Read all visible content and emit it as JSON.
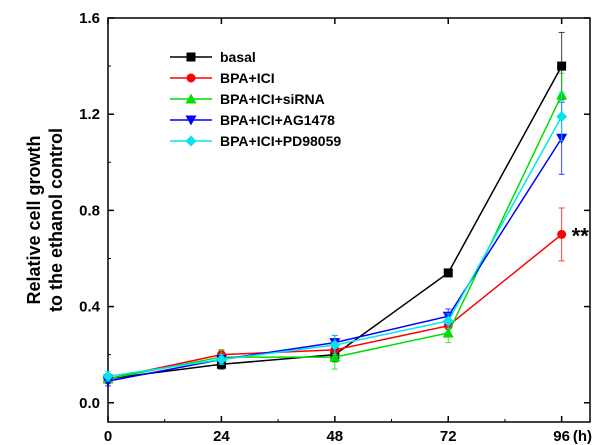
{
  "chart_data": {
    "type": "line",
    "title": "",
    "xlabel": "(h)",
    "ylabel_lines": [
      "Relative cell growth",
      "to the ethanol control"
    ],
    "x": [
      0,
      24,
      48,
      72,
      96
    ],
    "x_ticks": [
      "0",
      "24",
      "48",
      "72",
      "96"
    ],
    "y_ticks": [
      "0.0",
      "0.4",
      "0.8",
      "1.2",
      "1.6"
    ],
    "xlim": [
      0,
      102
    ],
    "ylim": [
      -0.08,
      1.6
    ],
    "grid": false,
    "legend_position": "top-left",
    "series": [
      {
        "name": "basal",
        "color": "#000000",
        "marker": "square",
        "values": [
          0.1,
          0.16,
          0.2,
          0.54,
          1.4
        ],
        "errors": [
          0.02,
          0.02,
          0.03,
          0.0,
          0.14
        ]
      },
      {
        "name": "BPA+ICI",
        "color": "#ff0000",
        "marker": "circle",
        "values": [
          0.1,
          0.2,
          0.22,
          0.32,
          0.7
        ],
        "errors": [
          0.02,
          0.02,
          0.03,
          0.03,
          0.11
        ]
      },
      {
        "name": "BPA+ICI+siRNA",
        "color": "#00dd00",
        "marker": "triangle-up",
        "values": [
          0.1,
          0.19,
          0.19,
          0.29,
          1.28
        ],
        "errors": [
          0.02,
          0.03,
          0.05,
          0.04,
          0.09
        ]
      },
      {
        "name": "BPA+ICI+AG1478",
        "color": "#0000ff",
        "marker": "triangle-down",
        "values": [
          0.09,
          0.18,
          0.25,
          0.36,
          1.1
        ],
        "errors": [
          0.02,
          0.02,
          0.03,
          0.03,
          0.15
        ]
      },
      {
        "name": "BPA+ICI+PD98059",
        "color": "#00e5ee",
        "marker": "diamond",
        "values": [
          0.11,
          0.18,
          0.24,
          0.34,
          1.19
        ],
        "errors": [
          0.02,
          0.02,
          0.04,
          0.03,
          0.1
        ]
      }
    ],
    "annotations": [
      {
        "text": "**",
        "x": 96,
        "y": 0.7
      }
    ]
  }
}
